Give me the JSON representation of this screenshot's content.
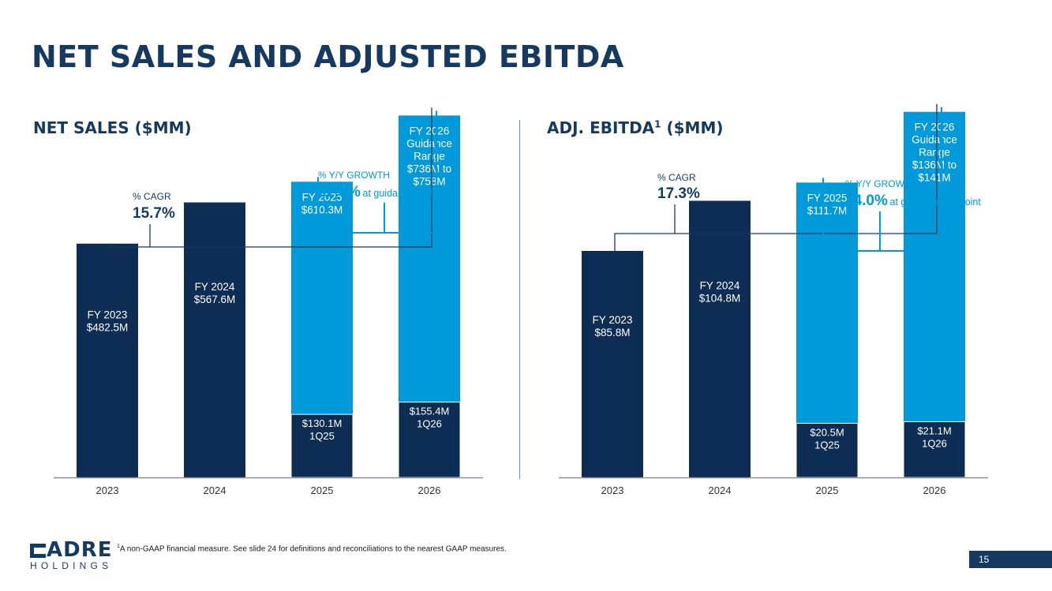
{
  "page": {
    "title": "NET SALES AND ADJUSTED EBITDA",
    "footnote": "A non-GAAP financial measure. See slide 24 for definitions and reconciliations to the nearest GAAP measures.",
    "footnote_marker": "1",
    "page_number": "15",
    "logo": {
      "main": "ADRE",
      "sub": "HOLDINGS"
    }
  },
  "colors": {
    "dark": "#0e2d54",
    "light": "#0099da",
    "bracket_dark": "#163a5f",
    "bracket_light": "#0099da",
    "axis": "#8a8f95"
  },
  "chart_data": [
    {
      "type": "bar",
      "title": "NET SALES ($MM)",
      "title_sup": "",
      "categories": [
        "2023",
        "2024",
        "2025",
        "2026"
      ],
      "values": [
        482.5,
        567.6,
        610.3,
        747
      ],
      "first_quarter": [
        null,
        null,
        130.1,
        155.4
      ],
      "ylim": [
        0,
        790
      ],
      "bar_labels": [
        [
          "FY 2023",
          "$482.5M"
        ],
        [
          "FY 2024",
          "$567.6M"
        ],
        [
          "FY 2025",
          "$610.3M"
        ],
        [
          "FY 2026",
          "Guidance",
          "Range",
          "$736M to",
          "$758M"
        ]
      ],
      "quarter_labels": [
        null,
        null,
        [
          "$130.1M",
          "1Q25"
        ],
        [
          "$155.4M",
          "1Q26"
        ]
      ],
      "cagr": {
        "label": "% CAGR",
        "value": "15.7%"
      },
      "growth": {
        "label": "% Y/Y GROWTH",
        "value": "22.4%",
        "note": "at guidance midpoint"
      }
    },
    {
      "type": "bar",
      "title": "ADJ. EBITDA",
      "title_sup": "1",
      "title_suffix": " ($MM)",
      "categories": [
        "2023",
        "2024",
        "2025",
        "2026"
      ],
      "values": [
        85.8,
        104.8,
        111.7,
        138.5
      ],
      "first_quarter": [
        null,
        null,
        20.5,
        21.1
      ],
      "ylim": [
        0,
        145
      ],
      "bar_labels": [
        [
          "FY 2023",
          "$85.8M"
        ],
        [
          "FY 2024",
          "$104.8M"
        ],
        [
          "FY 2025",
          "$111.7M"
        ],
        [
          "FY 2026",
          "Guidance",
          "Range",
          "$136M to",
          "$141M"
        ]
      ],
      "quarter_labels": [
        null,
        null,
        [
          "$20.5M",
          "1Q25"
        ],
        [
          "$21.1M",
          "1Q26"
        ]
      ],
      "cagr": {
        "label": "% CAGR",
        "value": "17.3%"
      },
      "growth": {
        "label": "% Y/Y GROWTH",
        "value": "24.0%",
        "note": "at guidance midpoint"
      }
    }
  ]
}
